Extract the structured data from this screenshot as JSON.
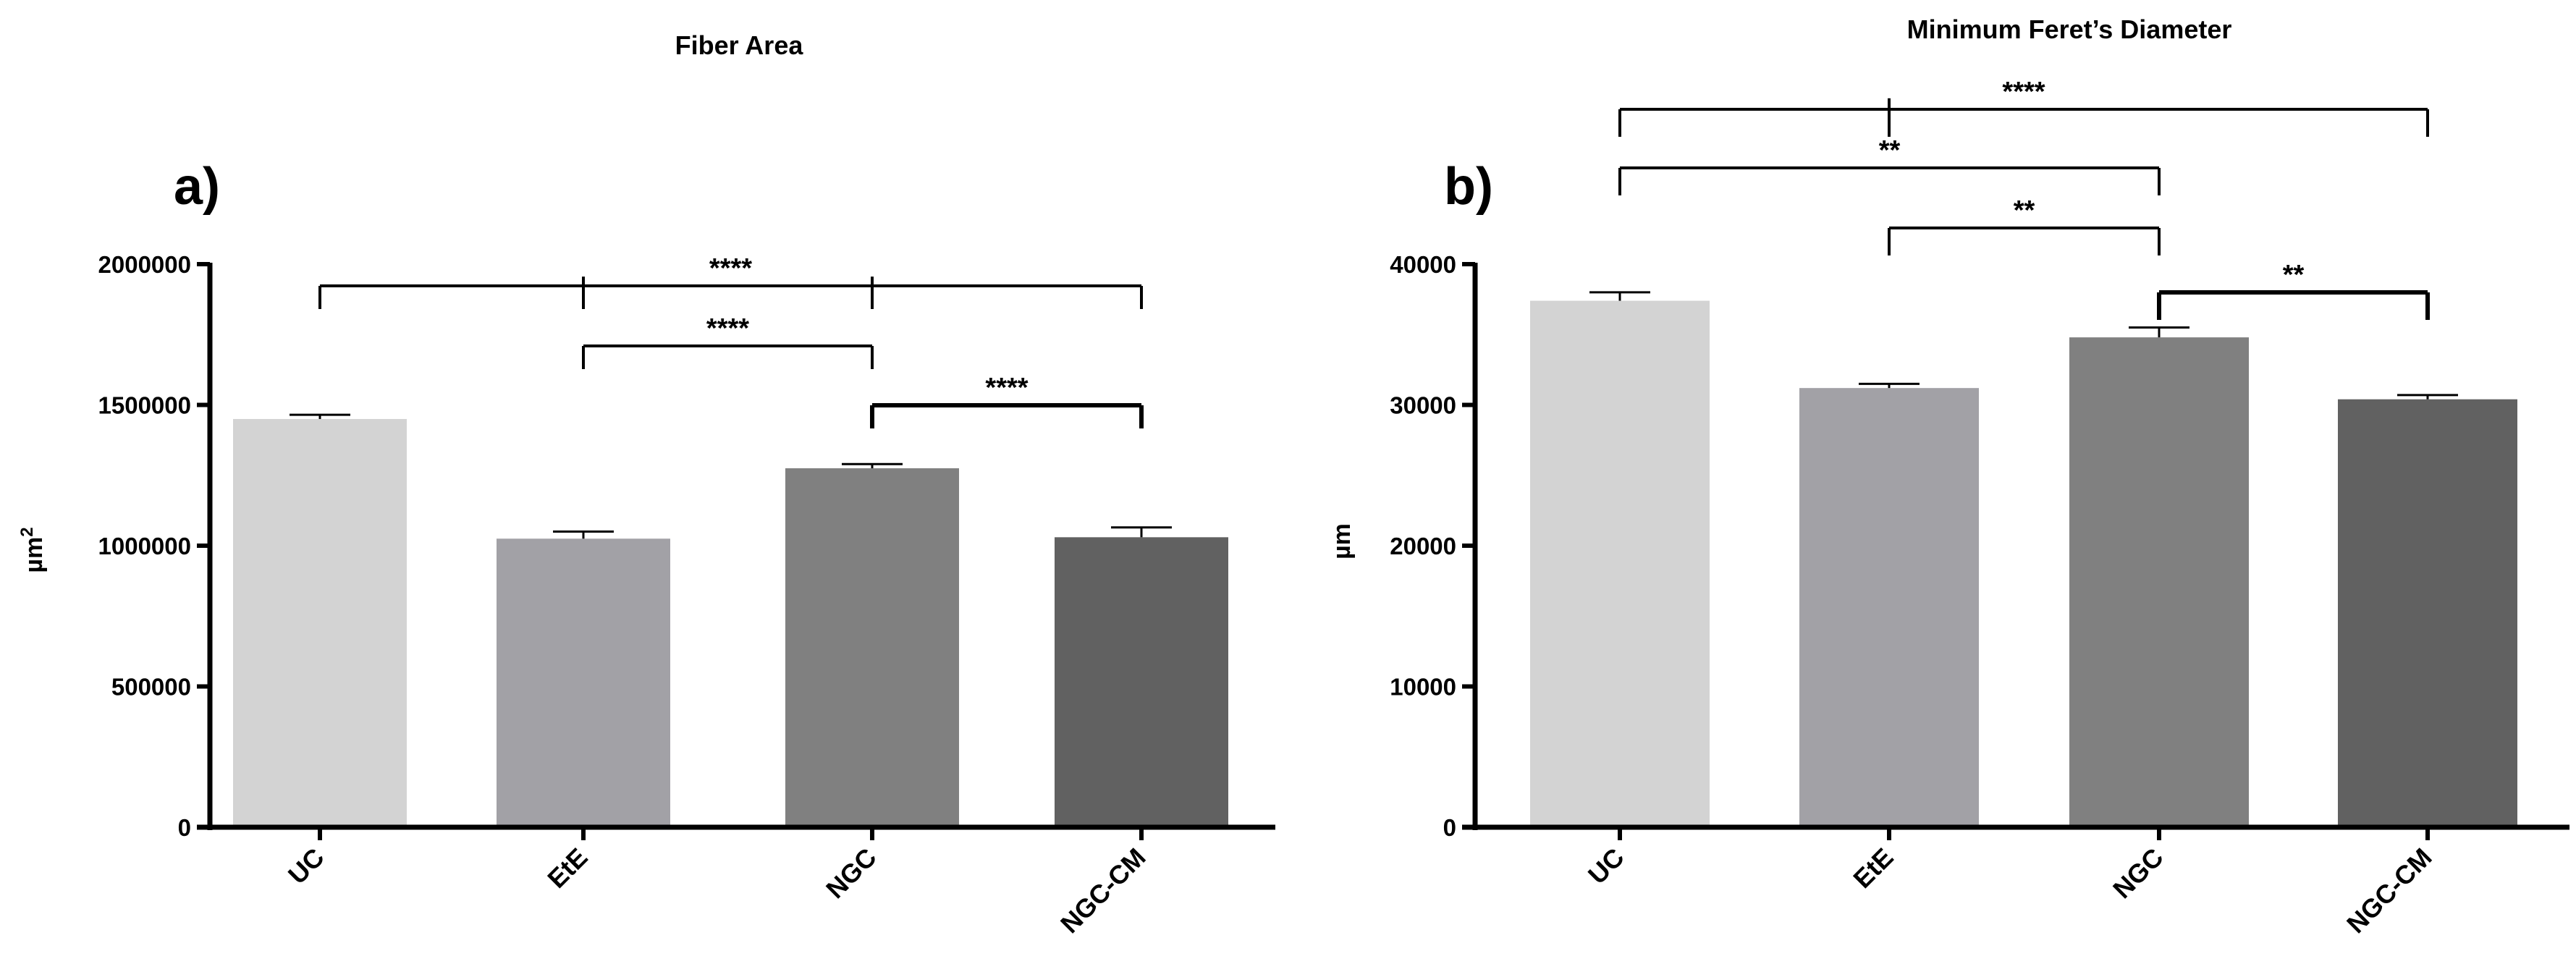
{
  "chart_data": [
    {
      "type": "bar",
      "panel": "a)",
      "title": "Fiber Area",
      "ylabel": "µm",
      "ylabel_superscript": "2",
      "categories": [
        "UC",
        "EtE",
        "NGC",
        "NGC-CM"
      ],
      "values": [
        1450000,
        1025000,
        1275000,
        1030000
      ],
      "errors": [
        15000,
        25000,
        15000,
        35000
      ],
      "colors": [
        "#d3d3d3",
        "#a2a1a6",
        "#808080",
        "#616161"
      ],
      "ylim": [
        0,
        2000000
      ],
      "yticks": [
        "0",
        "500000",
        "1000000",
        "1500000",
        "2000000"
      ],
      "significance": [
        {
          "from": 0,
          "to": 3,
          "label": "****",
          "drops": [
            0,
            1,
            2,
            3
          ]
        },
        {
          "from": 1,
          "to": 2,
          "label": "****",
          "drops": [
            1,
            2
          ]
        },
        {
          "from": 2,
          "to": 3,
          "label": "****",
          "drops": [
            2,
            3
          ]
        }
      ]
    },
    {
      "type": "bar",
      "panel": "b)",
      "title": "Minimum Feret’s Diameter",
      "ylabel": "µm",
      "ylabel_superscript": "",
      "categories": [
        "UC",
        "EtE",
        "NGC",
        "NGC-CM"
      ],
      "values": [
        37400,
        31200,
        34800,
        30400
      ],
      "errors": [
        600,
        300,
        700,
        300
      ],
      "colors": [
        "#d3d3d3",
        "#a2a1a6",
        "#808080",
        "#616161"
      ],
      "ylim": [
        0,
        40000
      ],
      "yticks": [
        "0",
        "10000",
        "20000",
        "30000",
        "40000"
      ],
      "significance": [
        {
          "from": 0,
          "to": 3,
          "label": "****",
          "drops": [
            0,
            1,
            3
          ]
        },
        {
          "from": 0,
          "to": 2,
          "label": "**",
          "drops": [
            0,
            2
          ]
        },
        {
          "from": 1,
          "to": 2,
          "label": "**",
          "drops": [
            1,
            2
          ]
        },
        {
          "from": 2,
          "to": 3,
          "label": "**",
          "drops": [
            2,
            3
          ]
        }
      ]
    }
  ]
}
